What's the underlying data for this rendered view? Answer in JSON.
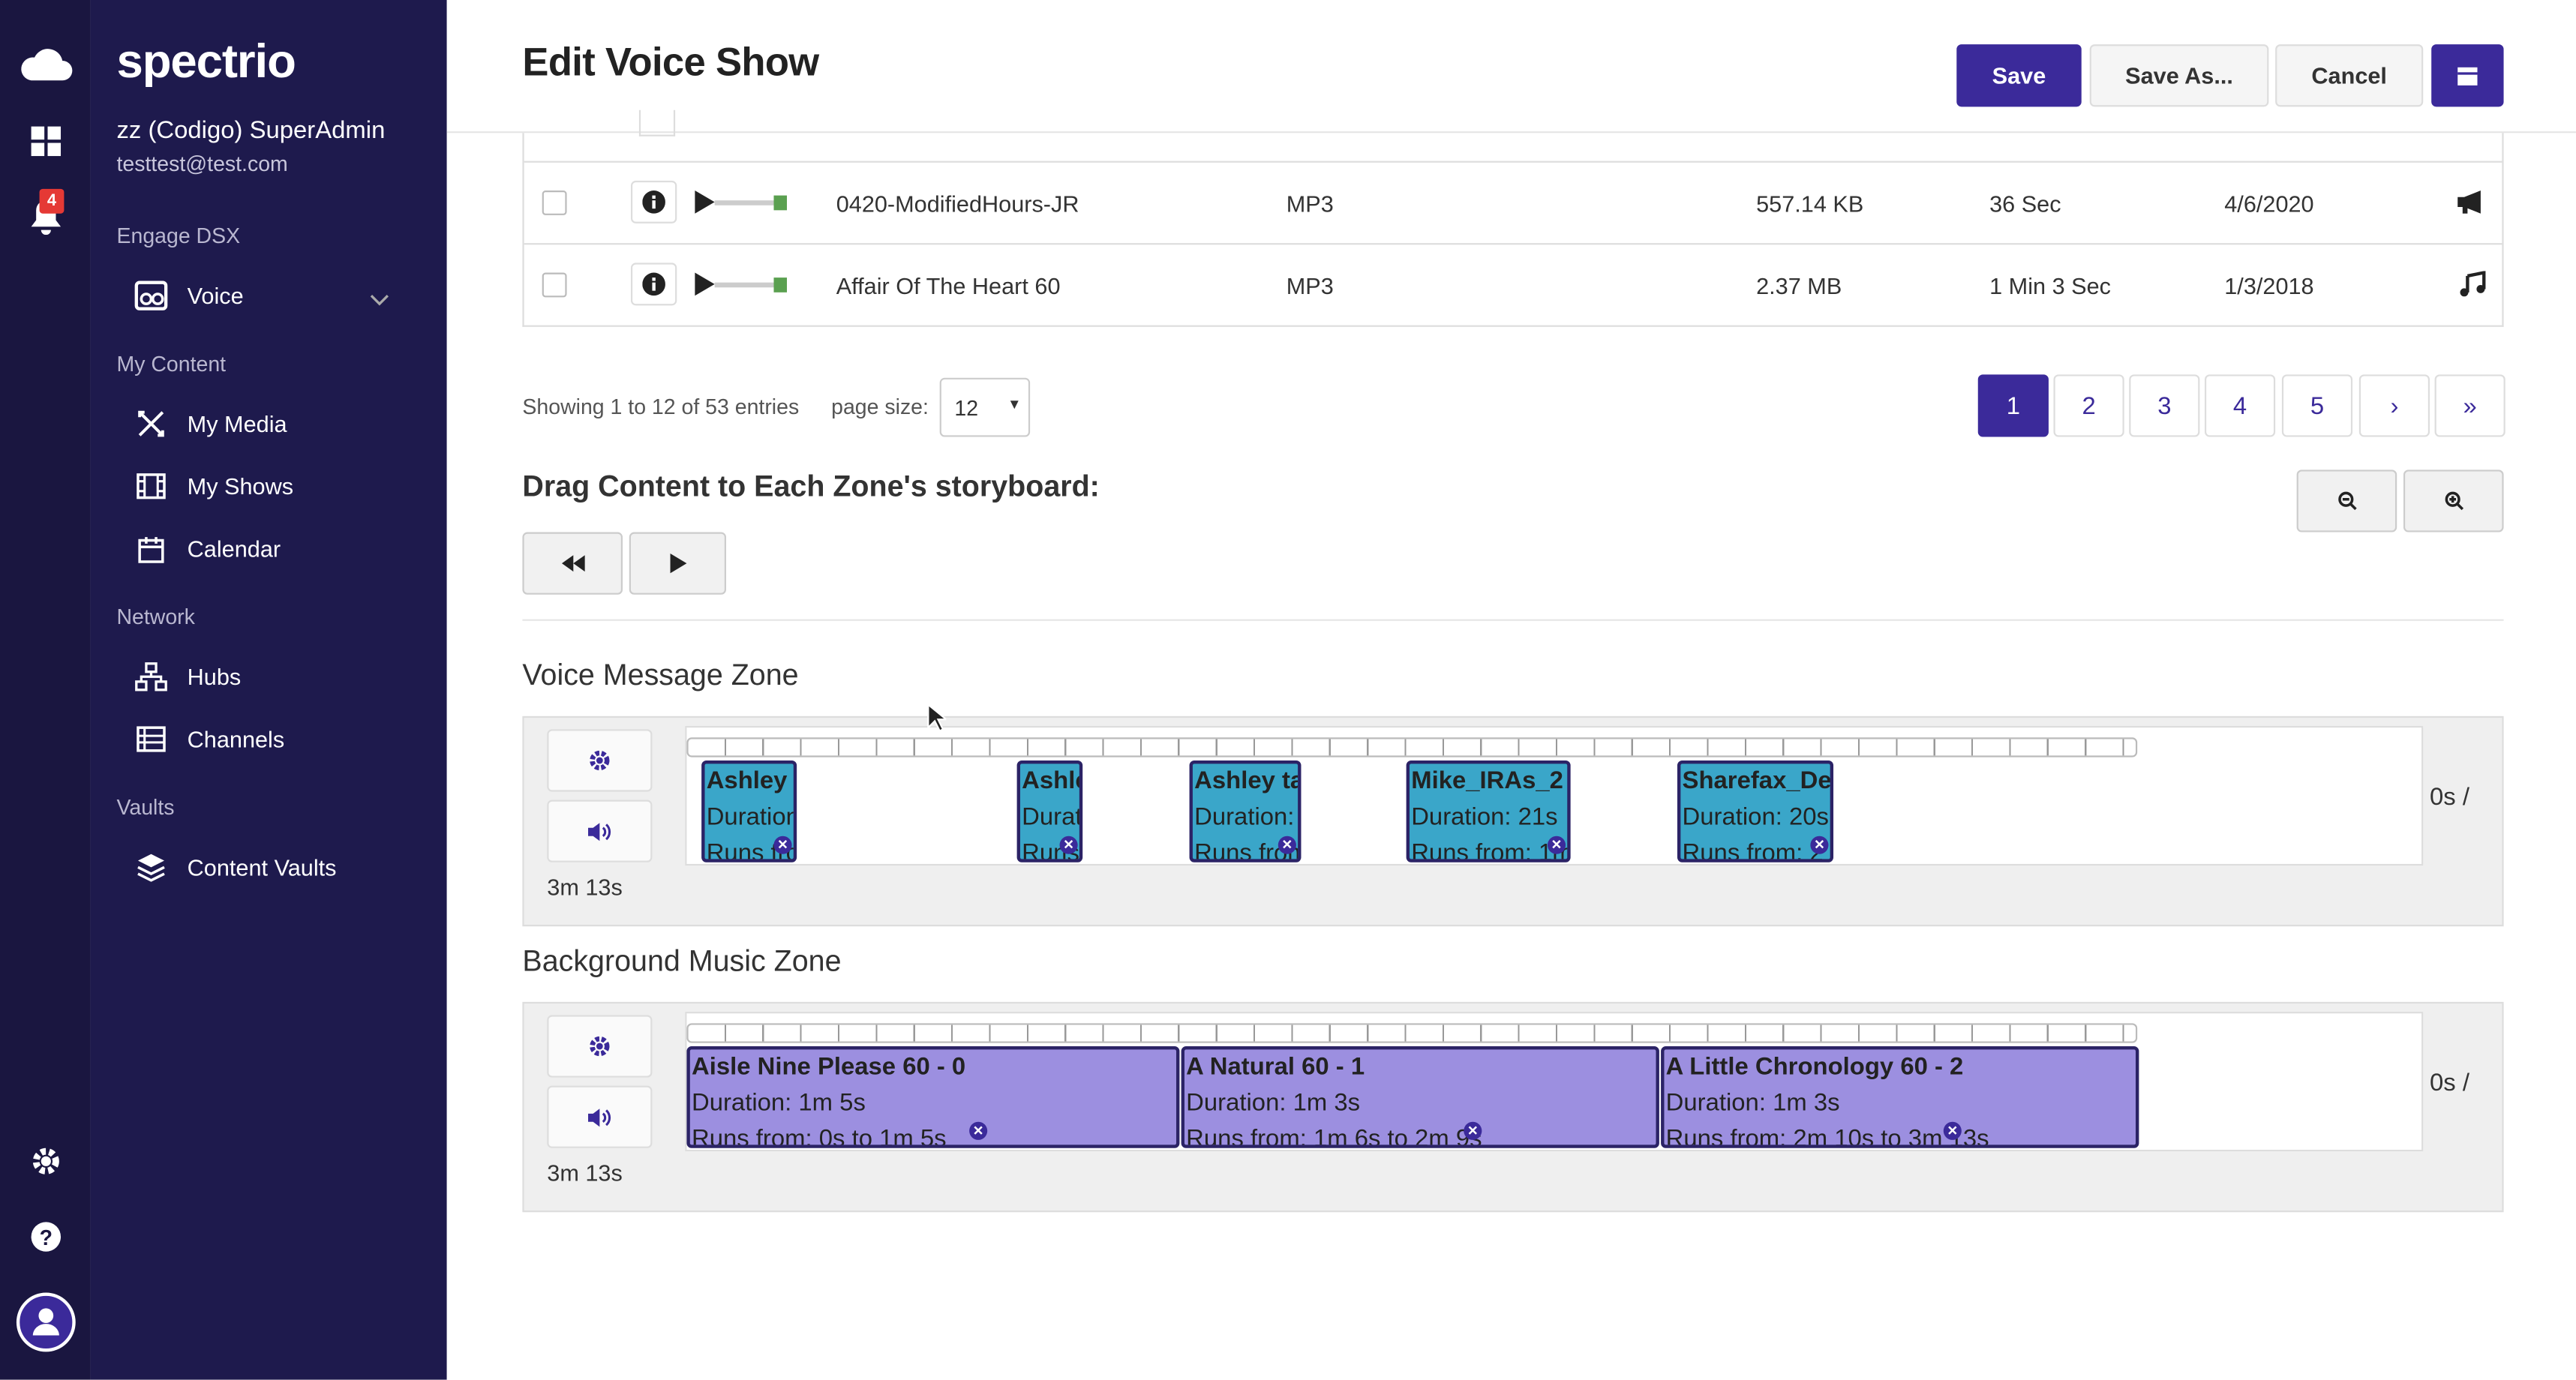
{
  "app": {
    "logo": "spectrio",
    "user_name": "zz (Codigo) SuperAdmin",
    "user_email": "testtest@test.com",
    "notification_count": "4"
  },
  "sidebar": {
    "sections": [
      {
        "label": "Engage DSX",
        "items": [
          {
            "label": "Voice",
            "icon": "voice-icon"
          }
        ]
      },
      {
        "label": "My Content",
        "items": [
          {
            "label": "My Media",
            "icon": "media-icon"
          },
          {
            "label": "My Shows",
            "icon": "film-icon"
          },
          {
            "label": "Calendar",
            "icon": "calendar-icon"
          }
        ]
      },
      {
        "label": "Network",
        "items": [
          {
            "label": "Hubs",
            "icon": "hubs-icon"
          },
          {
            "label": "Channels",
            "icon": "channels-icon"
          }
        ]
      },
      {
        "label": "Vaults",
        "items": [
          {
            "label": "Content Vaults",
            "icon": "layers-icon"
          }
        ]
      }
    ]
  },
  "header": {
    "title": "Edit Voice Show",
    "save": "Save",
    "save_as": "Save As...",
    "cancel": "Cancel"
  },
  "table": {
    "rows": [
      {
        "name": "0420-ModifiedHours-JR",
        "type": "MP3",
        "size": "557.14 KB",
        "duration": "36 Sec",
        "date": "4/6/2020",
        "kind_icon": "megaphone-icon"
      },
      {
        "name": "Affair Of The Heart 60",
        "type": "MP3",
        "size": "2.37 MB",
        "duration": "1 Min 3 Sec",
        "date": "1/3/2018",
        "kind_icon": "music-note-icon"
      }
    ],
    "showing": "Showing 1 to 12 of 53 entries",
    "page_size_label": "page size:",
    "page_size": "12",
    "pages": [
      "1",
      "2",
      "3",
      "4",
      "5",
      "›",
      "»"
    ],
    "current_page": "1"
  },
  "storyboard": {
    "heading": "Drag Content to Each Zone's storyboard:"
  },
  "zones": [
    {
      "title": "Voice Message Zone",
      "duration": "3m 13s",
      "time_label": "0s /",
      "clips": [
        {
          "title": "Ashley t",
          "line2": "Duration",
          "line3": "Runs fro"
        },
        {
          "title": "Ashle",
          "line2": "Durat",
          "line3": "Runs"
        },
        {
          "title": "Ashley ta",
          "line2": "Duration:",
          "line3": "Runs from"
        },
        {
          "title": "Mike_IRAs_2",
          "line2": "Duration: 21s",
          "line3": "Runs from: 1m"
        },
        {
          "title": "Sharefax_De",
          "line2": "Duration: 20s",
          "line3": "Runs from: 2"
        }
      ]
    },
    {
      "title": "Background Music Zone",
      "duration": "3m 13s",
      "time_label": "0s /",
      "clips": [
        {
          "title": "Aisle Nine Please 60 - 0",
          "line2": "Duration: 1m 5s",
          "line3": "Runs from: 0s to 1m 5s"
        },
        {
          "title": "A Natural 60 - 1",
          "line2": "Duration: 1m 3s",
          "line3": "Runs from: 1m 6s to 2m 9s"
        },
        {
          "title": "A Little Chronology 60 - 2",
          "line2": "Duration: 1m 3s",
          "line3": "Runs from: 2m 10s to 3m 13s"
        }
      ]
    }
  ],
  "colors": {
    "rail": "#1a1640",
    "sidebar": "#1e1a4d",
    "primary": "#3b2a9a",
    "voice_clip": "#3aa6c9",
    "music_clip": "#9c8fe0"
  }
}
